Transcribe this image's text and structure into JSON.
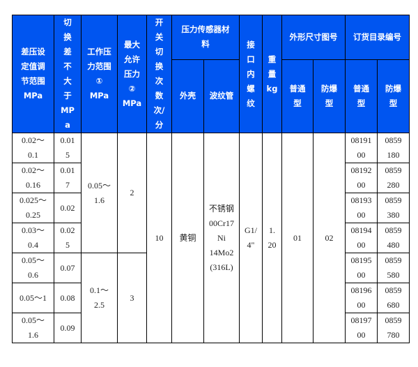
{
  "header_color": "#0055f0",
  "headers": {
    "range": "差压设\n定值调\n节范围\nMPa",
    "diff": "切\n换\n差\n不\n大\n于\nMP\na",
    "work": "工作压\n力范围\n①\nMPa",
    "max": "最大\n允许\n压力\n②\nMPa",
    "switch": "开\n关\n切\n换\n次\n数\n次/\n分",
    "material": "压力传感器材\n料",
    "shell": "外壳",
    "bellows": "波纹管",
    "port": "接\n口\n内\n螺\n纹",
    "weight": "重\n量\nkg",
    "dims": "外形尺寸图号",
    "order": "订货目录编号",
    "normal": "普通\n型",
    "explosion": "防爆\n型",
    "normal2": "普通\n型",
    "explosion2": "防爆\n型"
  },
  "rows": [
    {
      "range": "0.02～\n0.1",
      "diff": "0.01\n5",
      "normal": "08191\n00",
      "explosion": "0859\n180"
    },
    {
      "range": "0.02～\n0.16",
      "diff": "0.01\n7",
      "normal": "08192\n00",
      "explosion": "0859\n280"
    },
    {
      "range": "0.025～\n0.25",
      "diff": "0.02",
      "normal": "08193\n00",
      "explosion": "0859\n380"
    },
    {
      "range": "0.03～\n0.4",
      "diff": "0.02\n5",
      "normal": "08194\n00",
      "explosion": "0859\n480"
    },
    {
      "range": "0.05～\n0.6",
      "diff": "0.07",
      "normal": "08195\n00",
      "explosion": "0859\n580"
    },
    {
      "range": "0.05～1",
      "diff": "0.08",
      "normal": "08196\n00",
      "explosion": "0859\n680"
    },
    {
      "range": "0.05～\n1.6",
      "diff": "0.09",
      "normal": "08197\n00",
      "explosion": "0859\n780"
    }
  ],
  "merged": {
    "work_a": "0.05～\n1.6",
    "max_a": "2",
    "work_b": "0.1～\n2.5",
    "max_b": "3",
    "switch": "10",
    "shell": "黄铜",
    "bellows": "不锈钢\n00Cr17\nNi\n14Mo2\n(316L)",
    "port": "G1/\n4\"",
    "weight": "1.\n20",
    "dim_normal": "01",
    "dim_explosion": "02"
  }
}
